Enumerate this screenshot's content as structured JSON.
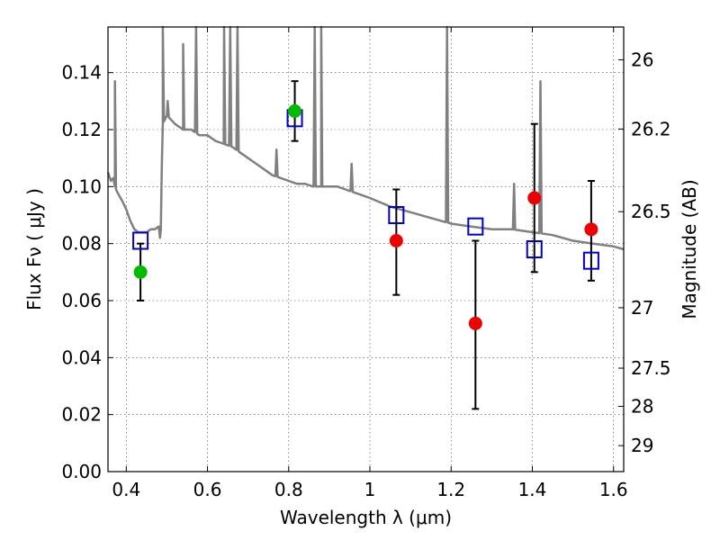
{
  "chart_data": {
    "type": "scatter",
    "xlabel": "Wavelength  λ (μm)",
    "ylabel": "Flux  Fν  ( μJy )",
    "ylabel_right": "Magnitude (AB)",
    "xlim": [
      0.355,
      1.625
    ],
    "ylim": [
      0.0,
      0.156
    ],
    "x_ticks": [
      0.4,
      0.6,
      0.8,
      1.0,
      1.2,
      1.4,
      1.6
    ],
    "x_tick_labels": [
      "0.4",
      "0.6",
      "0.8",
      "1",
      "1.2",
      "1.4",
      "1.6"
    ],
    "y_ticks": [
      0.0,
      0.02,
      0.04,
      0.06,
      0.08,
      0.1,
      0.12,
      0.14
    ],
    "y_tick_labels": [
      "0.00",
      "0.02",
      "0.04",
      "0.06",
      "0.08",
      "0.10",
      "0.12",
      "0.14"
    ],
    "right_axis_ticks": [
      {
        "label": "26",
        "flux": 0.1445
      },
      {
        "label": "26.2",
        "flux": 0.1202
      },
      {
        "label": "26.5",
        "flux": 0.0912
      },
      {
        "label": "27",
        "flux": 0.0575
      },
      {
        "label": "27.5",
        "flux": 0.0363
      },
      {
        "label": "28",
        "flux": 0.0229
      },
      {
        "label": "29",
        "flux": 0.0091
      }
    ],
    "grid": true,
    "colors": {
      "template": "#808080",
      "model_points": "#0000cc",
      "optical_detections": "#00bb00",
      "nir_detections": "#ee0000",
      "error_bars": "#000000"
    },
    "template_spectrum": {
      "x": [
        0.355,
        0.362,
        0.368,
        0.372,
        0.378,
        0.39,
        0.4,
        0.41,
        0.42,
        0.43,
        0.44,
        0.45,
        0.46,
        0.47,
        0.48,
        0.483,
        0.485,
        0.488,
        0.49,
        0.5,
        0.52,
        0.54,
        0.56,
        0.58,
        0.6,
        0.62,
        0.64,
        0.66,
        0.68,
        0.7,
        0.72,
        0.74,
        0.76,
        0.78,
        0.8,
        0.82,
        0.84,
        0.86,
        0.88,
        0.9,
        0.92,
        0.94,
        0.96,
        0.98,
        1.0,
        1.05,
        1.1,
        1.15,
        1.2,
        1.25,
        1.3,
        1.35,
        1.4,
        1.45,
        1.5,
        1.55,
        1.6,
        1.625
      ],
      "y": [
        0.105,
        0.102,
        0.103,
        0.1,
        0.098,
        0.095,
        0.092,
        0.088,
        0.085,
        0.084,
        0.084,
        0.084,
        0.085,
        0.085,
        0.086,
        0.082,
        0.085,
        0.11,
        0.122,
        0.125,
        0.122,
        0.12,
        0.12,
        0.118,
        0.118,
        0.116,
        0.115,
        0.114,
        0.112,
        0.11,
        0.108,
        0.106,
        0.104,
        0.103,
        0.102,
        0.101,
        0.101,
        0.1,
        0.1,
        0.1,
        0.1,
        0.099,
        0.098,
        0.097,
        0.096,
        0.093,
        0.091,
        0.089,
        0.087,
        0.086,
        0.085,
        0.085,
        0.084,
        0.083,
        0.081,
        0.08,
        0.079,
        0.078
      ]
    },
    "template_lines": [
      {
        "x": 0.372,
        "peak": 0.137
      },
      {
        "x": 0.49,
        "peak": 0.16
      },
      {
        "x": 0.502,
        "peak": 0.13
      },
      {
        "x": 0.54,
        "peak": 0.15
      },
      {
        "x": 0.572,
        "peak": 0.16
      },
      {
        "x": 0.641,
        "peak": 0.16
      },
      {
        "x": 0.656,
        "peak": 0.16
      },
      {
        "x": 0.674,
        "peak": 0.16
      },
      {
        "x": 0.77,
        "peak": 0.113
      },
      {
        "x": 0.864,
        "peak": 0.16
      },
      {
        "x": 0.88,
        "peak": 0.16
      },
      {
        "x": 0.955,
        "peak": 0.108
      },
      {
        "x": 1.19,
        "peak": 0.16
      },
      {
        "x": 1.355,
        "peak": 0.101
      },
      {
        "x": 1.42,
        "peak": 0.137
      }
    ],
    "model_points": [
      {
        "x": 0.435,
        "y": 0.081
      },
      {
        "x": 0.815,
        "y": 0.124
      },
      {
        "x": 1.065,
        "y": 0.09
      },
      {
        "x": 1.26,
        "y": 0.086
      },
      {
        "x": 1.405,
        "y": 0.078
      },
      {
        "x": 1.545,
        "y": 0.074
      }
    ],
    "optical_detections": [
      {
        "x": 0.435,
        "y": 0.07,
        "ylow": 0.06,
        "yhigh": 0.08
      },
      {
        "x": 0.815,
        "y": 0.1265,
        "ylow": 0.116,
        "yhigh": 0.137
      }
    ],
    "nir_detections": [
      {
        "x": 1.065,
        "y": 0.081,
        "ylow": 0.062,
        "yhigh": 0.099
      },
      {
        "x": 1.26,
        "y": 0.052,
        "ylow": 0.022,
        "yhigh": 0.081
      },
      {
        "x": 1.405,
        "y": 0.096,
        "ylow": 0.07,
        "yhigh": 0.122
      },
      {
        "x": 1.545,
        "y": 0.085,
        "ylow": 0.067,
        "yhigh": 0.102
      }
    ]
  }
}
